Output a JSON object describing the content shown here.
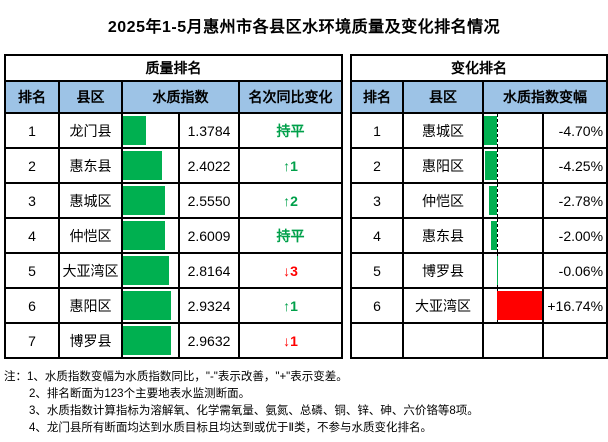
{
  "title": "2025年1-5月惠州市各县区水环境质量及变化排名情况",
  "colors": {
    "header_fill": "#9DC3E6",
    "bar_green": "#00B050",
    "bar_red": "#FF0000",
    "text_green": "#00A04A",
    "text_red": "#FF0000",
    "border": "#000000"
  },
  "left_table": {
    "group_header": "质量排名",
    "columns": [
      "排名",
      "县区",
      "水质指数",
      "名次同比变化"
    ],
    "bar_max": 2.9632,
    "bar_max_pct": 88,
    "rows": [
      {
        "rank": "1",
        "district": "龙门县",
        "value": "1.3784",
        "value_num": 1.3784,
        "change": "持平",
        "change_color": "green"
      },
      {
        "rank": "2",
        "district": "惠东县",
        "value": "2.4022",
        "value_num": 2.4022,
        "change": "↑1",
        "change_color": "green"
      },
      {
        "rank": "3",
        "district": "惠城区",
        "value": "2.5550",
        "value_num": 2.555,
        "change": "↑2",
        "change_color": "green"
      },
      {
        "rank": "4",
        "district": "仲恺区",
        "value": "2.6009",
        "value_num": 2.6009,
        "change": "持平",
        "change_color": "green"
      },
      {
        "rank": "5",
        "district": "大亚湾区",
        "value": "2.8164",
        "value_num": 2.8164,
        "change": "↓3",
        "change_color": "red"
      },
      {
        "rank": "6",
        "district": "惠阳区",
        "value": "2.9324",
        "value_num": 2.9324,
        "change": "↑1",
        "change_color": "green"
      },
      {
        "rank": "7",
        "district": "博罗县",
        "value": "2.9632",
        "value_num": 2.9632,
        "change": "↓1",
        "change_color": "red"
      }
    ]
  },
  "right_table": {
    "group_header": "变化排名",
    "columns": [
      "排名",
      "县区",
      "水质指数变幅"
    ],
    "axis_min": -4.7,
    "axis_max": 16.74,
    "rows": [
      {
        "rank": "1",
        "district": "惠城区",
        "value": "-4.70%",
        "value_num": -4.7
      },
      {
        "rank": "2",
        "district": "惠阳区",
        "value": "-4.25%",
        "value_num": -4.25
      },
      {
        "rank": "3",
        "district": "仲恺区",
        "value": "-2.78%",
        "value_num": -2.78
      },
      {
        "rank": "4",
        "district": "惠东县",
        "value": "-2.00%",
        "value_num": -2.0
      },
      {
        "rank": "5",
        "district": "博罗县",
        "value": "-0.06%",
        "value_num": -0.06
      },
      {
        "rank": "6",
        "district": "大亚湾区",
        "value": "+16.74%",
        "value_num": 16.74
      },
      {
        "rank": "",
        "district": "",
        "value": "",
        "value_num": null
      }
    ]
  },
  "notes": [
    "注：1、水质指数变幅为水质指数同比，\"-\"表示改善，\"+\"表示变差。",
    "2、排名断面为123个主要地表水监测断面。",
    "3、水质指数计算指标为溶解氧、化学需氧量、氨氮、总磷、铜、锌、砷、六价铬等8项。",
    "4、龙门县所有断面均达到水质目标且均达到或优于Ⅱ类，不参与水质变化排名。"
  ]
}
